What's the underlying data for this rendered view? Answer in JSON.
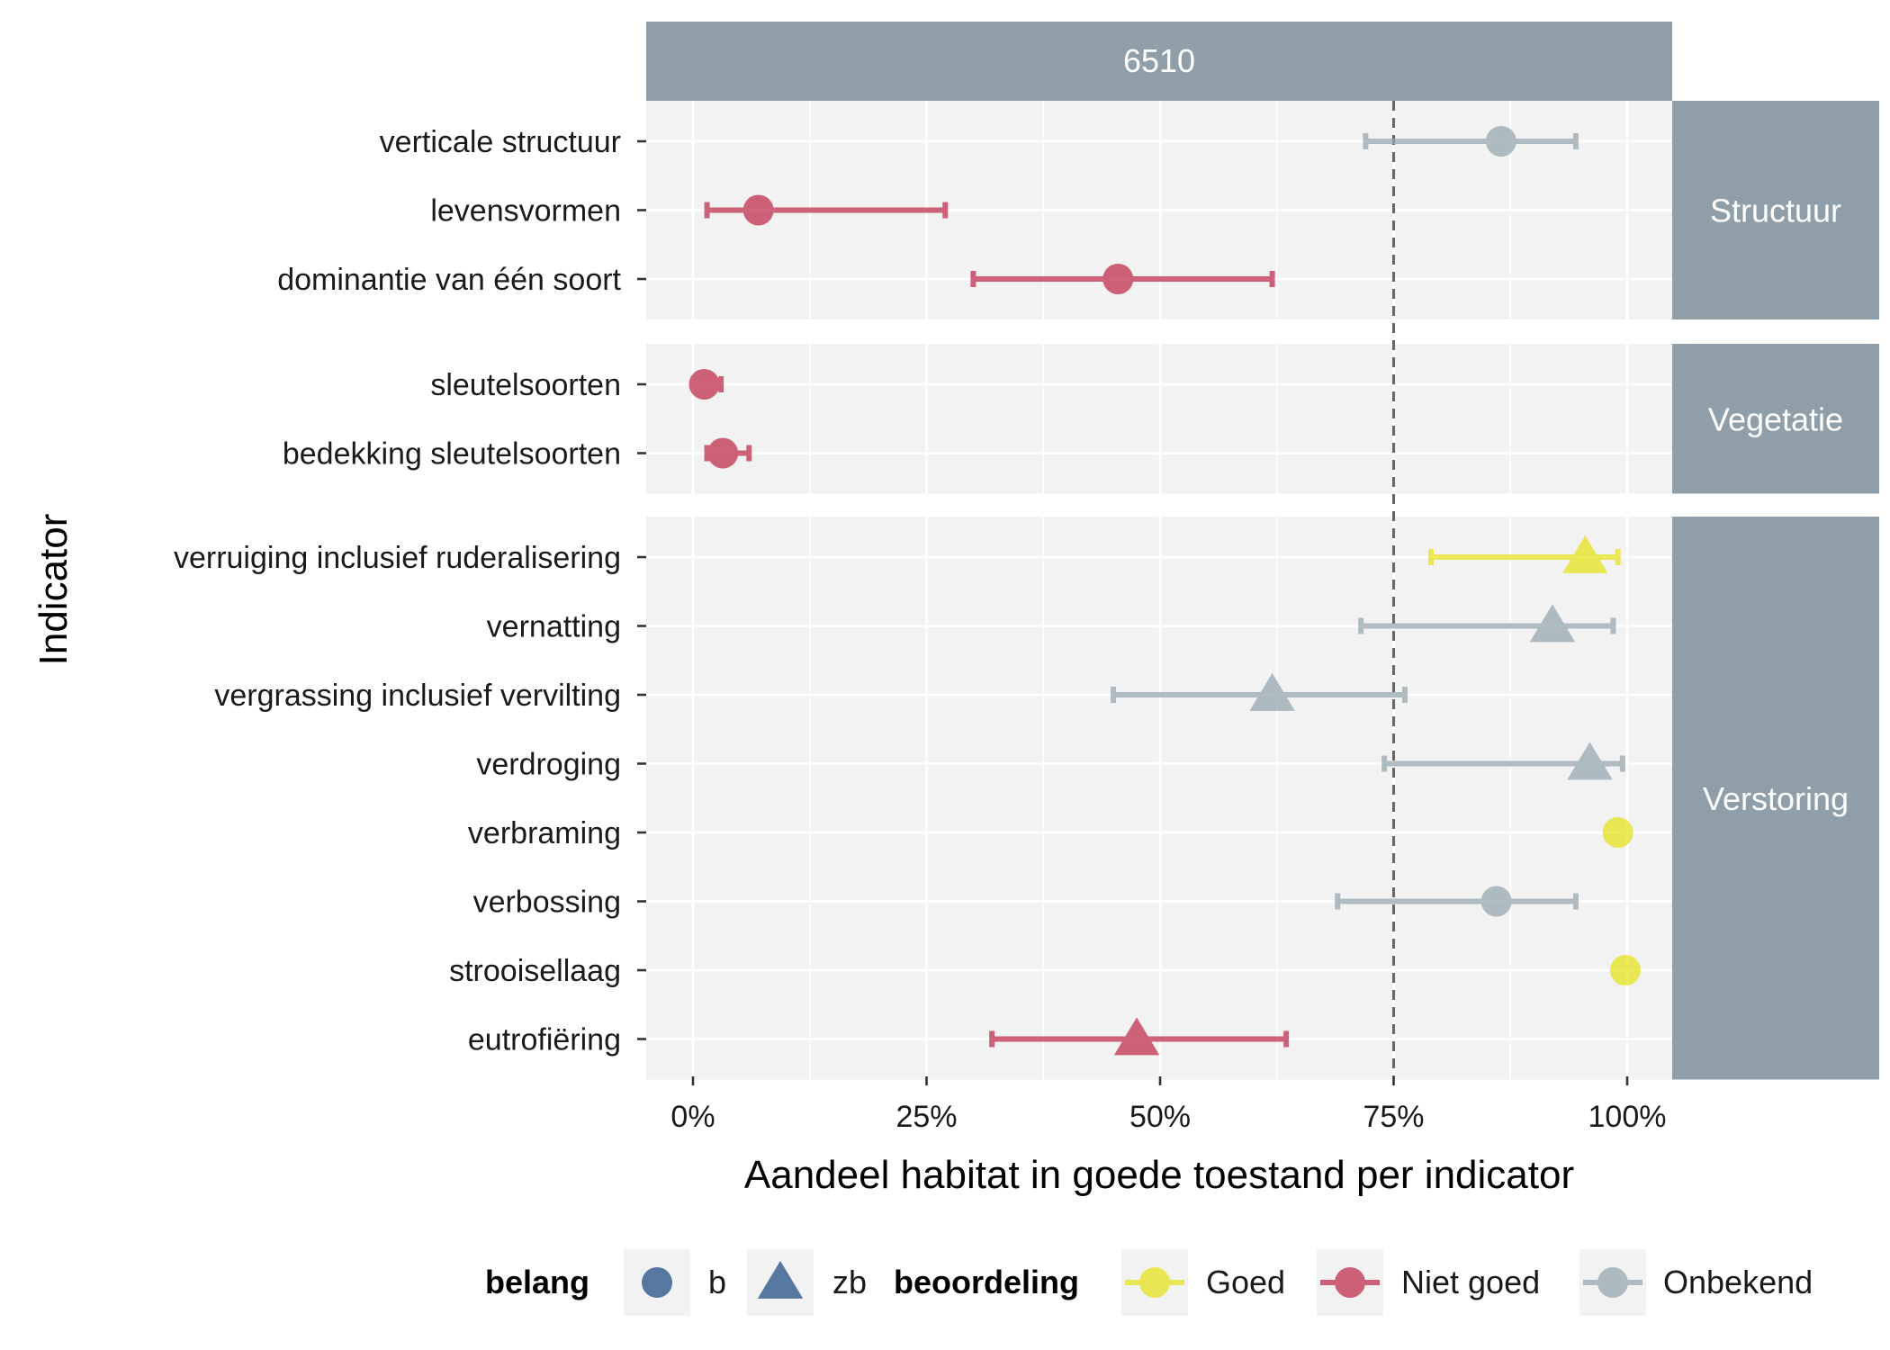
{
  "chart_data": {
    "type": "scatter",
    "facet_title": "6510",
    "xlabel": "Aandeel habitat in goede toestand per indicator",
    "ylabel": "Indicator",
    "xlim": [
      -0.05,
      1.05
    ],
    "x_ticks": [
      0,
      0.25,
      0.5,
      0.75,
      1.0
    ],
    "x_tick_labels": [
      "0%",
      "25%",
      "50%",
      "75%",
      "100%"
    ],
    "reference_line": 0.75,
    "grid": true,
    "legend_position": "bottom",
    "colors": {
      "Goed": "#e6e31e",
      "Niet goed": "#c0304f",
      "Onbekend": "#98a6b0",
      "strip": "#8f9ea8",
      "panel": "#f2f2f2",
      "legend_shape": "#5577a0"
    },
    "legend": {
      "belang_title": "belang",
      "belang_items": [
        {
          "label": "b",
          "shape": "circle"
        },
        {
          "label": "zb",
          "shape": "triangle"
        }
      ],
      "beoordeling_title": "beoordeling",
      "beoordeling_items": [
        "Goed",
        "Niet goed",
        "Onbekend"
      ]
    },
    "groups": [
      {
        "name": "Structuur",
        "rows": [
          {
            "indicator": "verticale structuur",
            "estimate": 0.865,
            "lower": 0.72,
            "upper": 0.945,
            "belang": "b",
            "beoordeling": "Onbekend"
          },
          {
            "indicator": "levensvormen",
            "estimate": 0.07,
            "lower": 0.015,
            "upper": 0.27,
            "belang": "b",
            "beoordeling": "Niet goed"
          },
          {
            "indicator": "dominantie van één soort",
            "estimate": 0.455,
            "lower": 0.3,
            "upper": 0.62,
            "belang": "b",
            "beoordeling": "Niet goed"
          }
        ]
      },
      {
        "name": "Vegetatie",
        "rows": [
          {
            "indicator": "sleutelsoorten",
            "estimate": 0.012,
            "lower": 0.005,
            "upper": 0.03,
            "belang": "b",
            "beoordeling": "Niet goed"
          },
          {
            "indicator": "bedekking sleutelsoorten",
            "estimate": 0.032,
            "lower": 0.015,
            "upper": 0.06,
            "belang": "b",
            "beoordeling": "Niet goed"
          }
        ]
      },
      {
        "name": "Verstoring",
        "rows": [
          {
            "indicator": "verruiging inclusief ruderalisering",
            "estimate": 0.955,
            "lower": 0.79,
            "upper": 0.99,
            "belang": "zb",
            "beoordeling": "Goed"
          },
          {
            "indicator": "vernatting",
            "estimate": 0.92,
            "lower": 0.715,
            "upper": 0.985,
            "belang": "zb",
            "beoordeling": "Onbekend"
          },
          {
            "indicator": "vergrassing inclusief vervilting",
            "estimate": 0.62,
            "lower": 0.45,
            "upper": 0.762,
            "belang": "zb",
            "beoordeling": "Onbekend"
          },
          {
            "indicator": "verdroging",
            "estimate": 0.96,
            "lower": 0.74,
            "upper": 0.995,
            "belang": "zb",
            "beoordeling": "Onbekend"
          },
          {
            "indicator": "verbraming",
            "estimate": 0.99,
            "lower": 0.98,
            "upper": 0.998,
            "belang": "b",
            "beoordeling": "Goed"
          },
          {
            "indicator": "verbossing",
            "estimate": 0.86,
            "lower": 0.69,
            "upper": 0.945,
            "belang": "b",
            "beoordeling": "Onbekend"
          },
          {
            "indicator": "strooisellaag",
            "estimate": 0.998,
            "lower": 0.996,
            "upper": 1.0,
            "belang": "b",
            "beoordeling": "Goed"
          },
          {
            "indicator": "eutrofiëring",
            "estimate": 0.475,
            "lower": 0.32,
            "upper": 0.635,
            "belang": "zb",
            "beoordeling": "Niet goed"
          }
        ]
      }
    ]
  }
}
